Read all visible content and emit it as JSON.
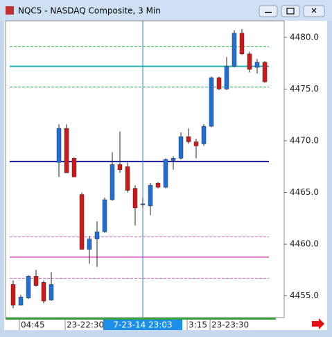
{
  "window_title": "NQC5 - NASDAQ Composite, 3 Min",
  "chart_data": {
    "type": "candlestick",
    "categories": [
      null,
      "04:45",
      null,
      null,
      null,
      null,
      null,
      "23-22:30",
      null,
      null,
      null,
      null,
      null,
      null,
      null,
      null,
      null,
      "7-23-14 23:03",
      null,
      null,
      null,
      null,
      null,
      "3:15",
      null,
      null,
      "23-23:30",
      null,
      null,
      null,
      null,
      null,
      null,
      null
    ],
    "cursor_index": 17,
    "open": [
      4456.1,
      4454.1,
      4454.8,
      4456.9,
      4456.3,
      4454.6,
      4467.9,
      4471.2,
      4468.3,
      4464.8,
      4459.5,
      4460.5,
      4461.2,
      4464.3,
      4467.7,
      4467.5,
      4465.4,
      4463.8,
      4463.7,
      4465.9,
      4465.5,
      4468.1,
      4468.3,
      4470.4,
      4469.9,
      4469.7,
      4471.4,
      4476.1,
      4475.0,
      4477.2,
      4480.4,
      4478.4,
      4477.1,
      4477.6
    ],
    "high": [
      4456.5,
      4455.1,
      4457.0,
      4457.5,
      4456.5,
      4457.3,
      4471.6,
      4471.6,
      4468.4,
      4465.0,
      4460.8,
      4462.2,
      4464.5,
      4468.9,
      4470.9,
      4467.9,
      4465.7,
      4464.5,
      4465.9,
      4466.0,
      4468.3,
      4468.5,
      4470.8,
      4471.2,
      4470.2,
      4471.6,
      4476.2,
      4476.2,
      4478.1,
      4480.7,
      4480.8,
      4478.6,
      4477.9,
      4477.7
    ],
    "low": [
      4453.8,
      4454.1,
      4454.7,
      4455.9,
      4454.3,
      4454.5,
      4466.5,
      4466.9,
      4466.5,
      4459.5,
      4458.1,
      4457.8,
      4461.1,
      4464.2,
      4466.9,
      4465.0,
      4461.8,
      4463.5,
      4462.8,
      4465.4,
      4465.4,
      4467.2,
      4468.2,
      4469.7,
      4468.3,
      4469.5,
      4471.3,
      4474.9,
      4474.9,
      4477.1,
      4478.3,
      4476.6,
      4476.5,
      4475.6
    ],
    "close": [
      4454.1,
      4454.9,
      4456.9,
      4456.0,
      4454.5,
      4456.1,
      4471.2,
      4466.9,
      4466.5,
      4459.5,
      4460.5,
      4461.2,
      4464.3,
      4467.7,
      4467.2,
      4465.2,
      4463.5,
      4463.9,
      4465.7,
      4465.5,
      4468.2,
      4468.3,
      4470.4,
      4469.9,
      4469.5,
      4471.4,
      4476.1,
      4475.0,
      4477.2,
      4480.4,
      4478.4,
      4476.9,
      4477.6,
      4475.7
    ],
    "up_color": "#1f6fd6",
    "down_color": "#d01818",
    "levels": [
      {
        "value": 4479.1,
        "color": "#22aa44",
        "style": "dashed"
      },
      {
        "value": 4477.2,
        "color": "#20b0b0",
        "style": "solid"
      },
      {
        "value": 4475.2,
        "color": "#22aa44",
        "style": "dashed"
      },
      {
        "value": 4468.0,
        "color": "#1a1aa0",
        "style": "solid"
      },
      {
        "value": 4460.7,
        "color": "#e070c0",
        "style": "dashed"
      },
      {
        "value": 4458.75,
        "color": "#e070c0",
        "style": "solid"
      },
      {
        "value": 4456.7,
        "color": "#e070c0",
        "style": "dashed"
      }
    ],
    "ylim": [
      4452.9,
      4481.6
    ],
    "yticks": [
      {
        "value": 4455,
        "label": "4455.0"
      },
      {
        "value": 4460,
        "label": "4460.0"
      },
      {
        "value": 4465,
        "label": "4465.0"
      },
      {
        "value": 4470,
        "label": "4470.0"
      },
      {
        "value": 4475,
        "label": "4475.0"
      },
      {
        "value": 4480,
        "label": "4480.0"
      }
    ]
  }
}
